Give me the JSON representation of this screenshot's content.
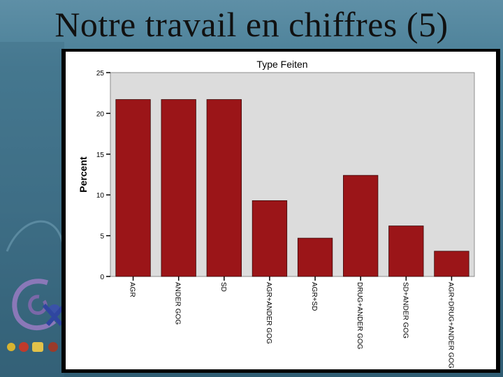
{
  "slide": {
    "title": "Notre travail en chiffres (5)"
  },
  "colors": {
    "bar": "#9b1518",
    "plot_bg": "#dcdcdc",
    "frame": "#000000"
  },
  "icons": [
    "logo-swirl-icon",
    "logo-badges-icon"
  ],
  "chart_data": {
    "type": "bar",
    "title": "Type Feiten",
    "ylabel": "Percent",
    "xlabel": "",
    "categories": [
      "AGR",
      "ANDER GOG",
      "SD",
      "AGR+ANDER GOG",
      "AGR+SD",
      "DRUG+ANDER GOG",
      "SD+ANDER GOG",
      "AGR+DRUG+ANDER GOG"
    ],
    "values": [
      21.7,
      21.7,
      21.7,
      9.3,
      4.7,
      12.4,
      6.2,
      3.1
    ],
    "ylim": [
      0,
      25
    ],
    "yticks": [
      "0",
      "5",
      "10",
      "15",
      "20",
      "25"
    ],
    "grid": false,
    "tick_label_rotation": "vertical"
  }
}
